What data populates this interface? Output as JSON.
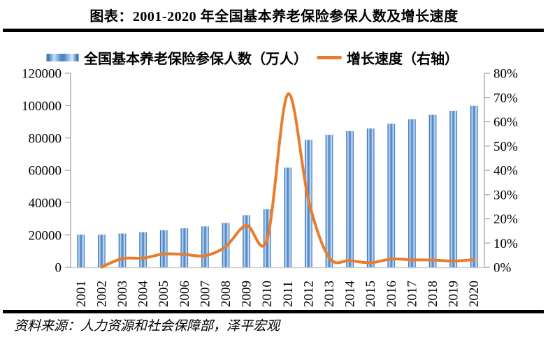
{
  "page": {
    "title": "图表：2001-2020 年全国基本养老保险参保人数及增长速度",
    "source": "资料来源：人力资源和社会保障部，泽平宏观"
  },
  "legend": {
    "bar_label": "全国基本养老保险参保人数（万人）",
    "line_label": "增长速度（右轴）"
  },
  "colors": {
    "bar_edge": "#2f6ab2",
    "bar_mid": "#4b87ca",
    "bar_light": "#ddeaf8",
    "line": "#e87d2d",
    "axis": "#9b9b9b",
    "baseline": "#cccccc",
    "divider": "#000000"
  },
  "chart_data": {
    "type": "bar",
    "subtype": "bar+line combo, dual axis",
    "title": "图表：2001-2020 年全国基本养老保险参保人数及增长速度",
    "categories": [
      "2001",
      "2002",
      "2003",
      "2004",
      "2005",
      "2006",
      "2007",
      "2008",
      "2009",
      "2010",
      "2011",
      "2012",
      "2013",
      "2014",
      "2015",
      "2016",
      "2017",
      "2018",
      "2019",
      "2020"
    ],
    "series": [
      {
        "name": "全国基本养老保险参保人数（万人）",
        "type": "bar",
        "axis": "left",
        "unit": "万人",
        "values": [
          20178,
          20198,
          20934,
          21731,
          22930,
          24140,
          25309,
          27486,
          32241,
          35984,
          61683,
          78797,
          81968,
          84231,
          85833,
          88777,
          91548,
          94294,
          96754,
          99865
        ]
      },
      {
        "name": "增长速度（右轴）",
        "type": "line",
        "axis": "right",
        "unit": "%",
        "smoothed": true,
        "values": [
          null,
          0.1,
          3.6,
          3.8,
          5.5,
          5.3,
          4.8,
          8.6,
          17.3,
          11.6,
          71.4,
          27.7,
          4.0,
          2.8,
          1.9,
          3.4,
          3.1,
          3.0,
          2.6,
          3.2
        ]
      }
    ],
    "left_axis": {
      "min": 0,
      "max": 120000,
      "tick_step": 20000,
      "tick_labels": [
        "0",
        "20000",
        "40000",
        "60000",
        "80000",
        "100000",
        "120000"
      ]
    },
    "right_axis": {
      "min": 0,
      "max": 80,
      "tick_step": 10,
      "tick_labels": [
        "0%",
        "10%",
        "20%",
        "30%",
        "40%",
        "50%",
        "60%",
        "70%",
        "80%"
      ]
    },
    "legend_position": "top",
    "grid": false,
    "x_labels_rotated": true
  }
}
